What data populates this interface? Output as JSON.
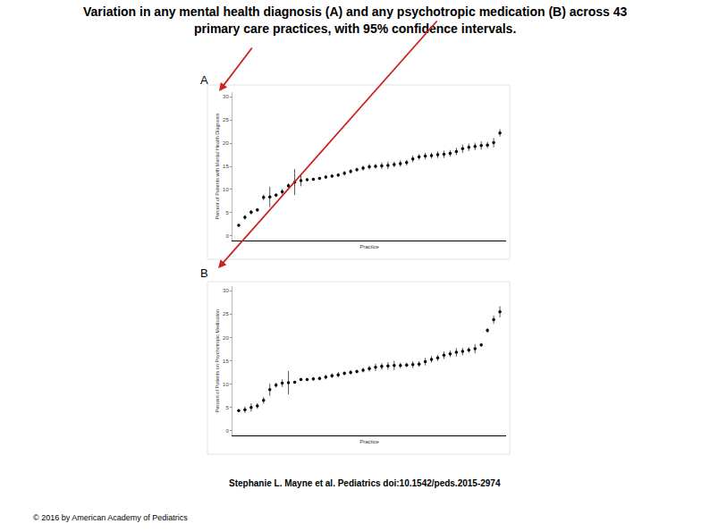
{
  "title_lines": [
    "Variation in any mental health diagnosis (A) and any psychotropic medication (B) across 43",
    "primary care practices, with 95% confidence intervals."
  ],
  "citation": "Stephanie L. Mayne et al. Pediatrics doi:10.1542/peds.2015-2974",
  "copyright": "© 2016 by American Academy of Pediatrics",
  "chart_data": [
    {
      "panel_label": "A",
      "type": "scatter",
      "marker": "circle",
      "color": "#000000",
      "grid": false,
      "tick_labels": "y",
      "xlabel": "Practice",
      "ylabel": "Percent of Patients with Mental Health Diagnosis",
      "categories": [
        null,
        null,
        null,
        null,
        null,
        null,
        null,
        null,
        null,
        null,
        null,
        null,
        null,
        null,
        null,
        null,
        null,
        null,
        null,
        null,
        null,
        null,
        null,
        null,
        null,
        null,
        null,
        null,
        null,
        null,
        null,
        null,
        null,
        null,
        null,
        null,
        null,
        null,
        null,
        null,
        null,
        null,
        null
      ],
      "values": [
        2.3,
        4.0,
        5.1,
        5.6,
        8.3,
        8.4,
        8.8,
        9.5,
        10.8,
        11.6,
        11.9,
        12.1,
        12.2,
        12.4,
        12.7,
        12.9,
        13.1,
        13.5,
        13.9,
        14.3,
        14.6,
        14.9,
        15.0,
        15.1,
        15.2,
        15.4,
        15.6,
        15.8,
        16.6,
        17.0,
        17.2,
        17.3,
        17.5,
        17.6,
        17.8,
        18.2,
        18.8,
        19.1,
        19.3,
        19.5,
        19.6,
        20.1,
        22.2
      ],
      "error": [
        0.3,
        0.5,
        0.5,
        0.4,
        0.6,
        2.2,
        0.4,
        0.6,
        0.5,
        2.8,
        1.2,
        0.3,
        0.3,
        0.3,
        0.4,
        0.4,
        0.4,
        0.5,
        0.5,
        0.4,
        0.5,
        0.6,
        0.5,
        0.7,
        0.8,
        0.6,
        0.7,
        0.6,
        0.7,
        0.6,
        0.7,
        0.6,
        0.7,
        0.8,
        0.7,
        0.8,
        0.9,
        0.8,
        0.8,
        0.9,
        0.7,
        1.0,
        0.8
      ],
      "ylim": [
        -1,
        31
      ],
      "yticks": [
        0,
        5,
        10,
        15,
        20,
        25,
        30
      ]
    },
    {
      "panel_label": "B",
      "type": "scatter",
      "marker": "circle",
      "color": "#000000",
      "grid": false,
      "tick_labels": "y",
      "xlabel": "Practice",
      "ylabel": "Percent of Patients on Psychotropic Medication",
      "categories": [
        null,
        null,
        null,
        null,
        null,
        null,
        null,
        null,
        null,
        null,
        null,
        null,
        null,
        null,
        null,
        null,
        null,
        null,
        null,
        null,
        null,
        null,
        null,
        null,
        null,
        null,
        null,
        null,
        null,
        null,
        null,
        null,
        null,
        null,
        null,
        null,
        null,
        null,
        null,
        null,
        null,
        null,
        null
      ],
      "values": [
        4.3,
        4.5,
        5.0,
        5.3,
        6.5,
        8.8,
        9.8,
        10.2,
        10.3,
        10.4,
        11.0,
        11.0,
        11.1,
        11.2,
        11.5,
        11.8,
        12.0,
        12.3,
        12.5,
        12.7,
        13.0,
        13.3,
        13.6,
        13.8,
        13.9,
        14.0,
        14.0,
        14.1,
        14.2,
        14.3,
        14.8,
        15.3,
        15.6,
        16.2,
        16.5,
        16.8,
        17.0,
        17.3,
        17.6,
        18.4,
        21.5,
        23.8,
        25.5
      ],
      "error": [
        0.3,
        0.7,
        0.9,
        0.6,
        0.7,
        1.3,
        0.5,
        0.8,
        2.5,
        0.3,
        0.3,
        0.3,
        0.4,
        0.4,
        0.5,
        0.5,
        0.6,
        0.4,
        0.5,
        0.4,
        0.5,
        0.6,
        0.8,
        0.7,
        0.8,
        1.0,
        0.6,
        0.5,
        0.7,
        0.6,
        0.8,
        0.7,
        0.6,
        0.8,
        0.7,
        0.9,
        0.8,
        0.6,
        1.0,
        0.4,
        0.5,
        0.9,
        1.2
      ],
      "ylim": [
        -1,
        31
      ],
      "yticks": [
        0,
        5,
        10,
        15,
        20,
        25,
        30
      ]
    }
  ]
}
